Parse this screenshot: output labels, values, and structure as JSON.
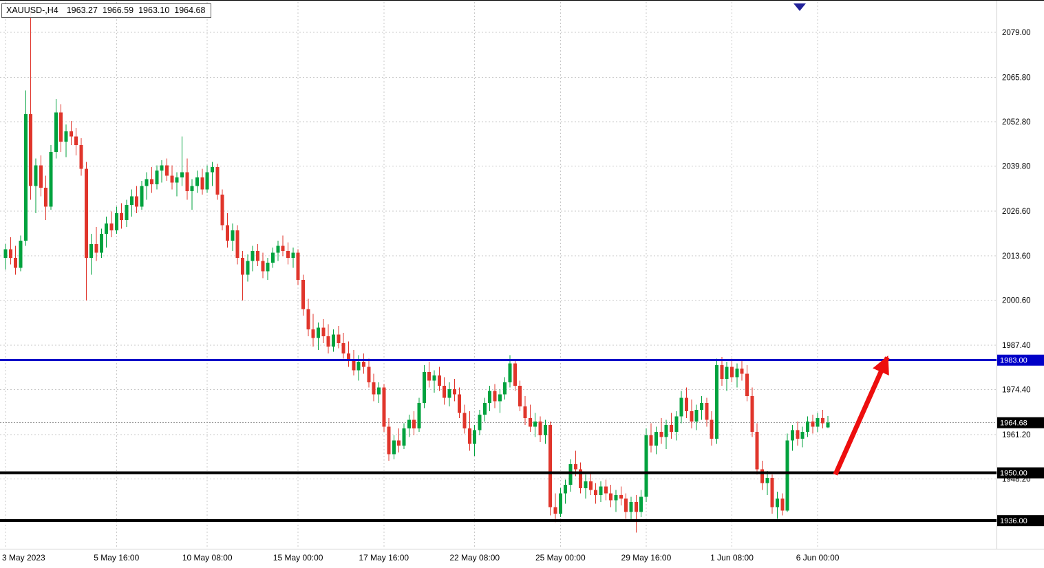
{
  "title_bar": {
    "symbol_period": "XAUUSD-,H4",
    "open": "1963.27",
    "high": "1966.59",
    "low": "1963.10",
    "close": "1964.68"
  },
  "price_axis": {
    "ticks": [
      2079.0,
      2065.8,
      2052.8,
      2039.8,
      2026.6,
      2013.6,
      2000.6,
      1987.4,
      1974.4,
      1961.2,
      1948.2
    ],
    "tags": [
      {
        "price": 1983.0,
        "label": "1983.00",
        "bg": "#0000c8"
      },
      {
        "price": 1964.68,
        "label": "1964.68",
        "bg": "#000000"
      },
      {
        "price": 1950.0,
        "label": "1950.00",
        "bg": "#000000"
      },
      {
        "price": 1936.0,
        "label": "1936.00",
        "bg": "#000000"
      }
    ]
  },
  "time_axis": {
    "labels": [
      {
        "index": 0,
        "label": "3 May 2023"
      },
      {
        "index": 22,
        "label": "5 May 16:00"
      },
      {
        "index": 40,
        "label": "10 May 08:00"
      },
      {
        "index": 58,
        "label": "15 May 00:00"
      },
      {
        "index": 75,
        "label": "17 May 16:00"
      },
      {
        "index": 93,
        "label": "22 May 08:00"
      },
      {
        "index": 110,
        "label": "25 May 00:00"
      },
      {
        "index": 127,
        "label": "29 May 16:00"
      },
      {
        "index": 144,
        "label": "1 Jun 08:00"
      },
      {
        "index": 161,
        "label": "6 Jun 00:00"
      }
    ]
  },
  "chart_data": {
    "type": "candlestick",
    "symbol": "XAUUSD-",
    "timeframe": "H4",
    "title": "XAUUSD-,H4 1963.27 1966.59 1963.10 1964.68",
    "y_axis_range": [
      1928,
      2088
    ],
    "grid": true,
    "current_price": 1964.68,
    "colors": {
      "up": "#00a23e",
      "down": "#e0352b",
      "grid": "#c8c8c8",
      "current_price_line": "#9a9a9a",
      "axis_text": "#000000",
      "tag_text": "#ffffff",
      "shift_marker": "#22229a"
    },
    "levels": [
      {
        "price": 1983.0,
        "color": "#0000c8",
        "width": 3
      },
      {
        "price": 1950.0,
        "color": "#000000",
        "width": 4
      },
      {
        "price": 1936.0,
        "color": "#000000",
        "width": 4
      }
    ],
    "annotations": [
      {
        "type": "arrow",
        "color": "#ed0e0e",
        "width": 7,
        "from": {
          "index": 164.5,
          "price": 1949.5
        },
        "to": {
          "index": 174.8,
          "price": 1983.8
        }
      }
    ],
    "ohlc": [
      [
        2013.0,
        2017.0,
        2009.5,
        2015.5
      ],
      [
        2015.5,
        2019.0,
        2011.0,
        2013.0
      ],
      [
        2013.0,
        2016.5,
        2008.0,
        2010.0
      ],
      [
        2010.0,
        2019.5,
        2009.0,
        2018.0
      ],
      [
        2018.0,
        2062.0,
        2016.5,
        2055.0
      ],
      [
        2055.0,
        2085.0,
        2030.0,
        2034.0
      ],
      [
        2034.0,
        2042.0,
        2026.0,
        2040.0
      ],
      [
        2040.0,
        2043.0,
        2031.0,
        2033.5
      ],
      [
        2033.5,
        2037.0,
        2024.0,
        2028.0
      ],
      [
        2028.0,
        2046.0,
        2027.0,
        2044.0
      ],
      [
        2044.0,
        2059.5,
        2042.0,
        2055.5
      ],
      [
        2055.5,
        2058.0,
        2044.0,
        2047.0
      ],
      [
        2047.0,
        2052.0,
        2042.5,
        2050.0
      ],
      [
        2050.0,
        2053.0,
        2046.0,
        2048.5
      ],
      [
        2048.5,
        2051.0,
        2043.0,
        2046.0
      ],
      [
        2046.0,
        2048.0,
        2037.0,
        2039.0
      ],
      [
        2039.0,
        2041.0,
        2000.5,
        2013.0
      ],
      [
        2013.0,
        2020.0,
        2008.0,
        2017.0
      ],
      [
        2017.0,
        2022.0,
        2012.0,
        2014.5
      ],
      [
        2014.5,
        2021.5,
        2013.0,
        2020.0
      ],
      [
        2020.0,
        2025.0,
        2016.0,
        2023.0
      ],
      [
        2023.0,
        2026.5,
        2019.0,
        2021.0
      ],
      [
        2021.0,
        2028.0,
        2020.0,
        2026.0
      ],
      [
        2026.0,
        2029.0,
        2021.5,
        2024.0
      ],
      [
        2024.0,
        2030.0,
        2022.0,
        2028.5
      ],
      [
        2028.5,
        2033.0,
        2025.0,
        2031.0
      ],
      [
        2031.0,
        2034.0,
        2026.0,
        2028.0
      ],
      [
        2028.0,
        2035.5,
        2027.0,
        2034.0
      ],
      [
        2034.0,
        2038.0,
        2030.0,
        2036.0
      ],
      [
        2036.0,
        2039.5,
        2032.0,
        2034.5
      ],
      [
        2034.5,
        2040.0,
        2033.0,
        2038.5
      ],
      [
        2038.5,
        2041.5,
        2035.0,
        2040.0
      ],
      [
        2040.0,
        2042.0,
        2035.5,
        2037.0
      ],
      [
        2037.0,
        2040.0,
        2033.0,
        2035.0
      ],
      [
        2035.0,
        2038.0,
        2031.0,
        2036.5
      ],
      [
        2036.5,
        2048.5,
        2034.0,
        2038.0
      ],
      [
        2038.0,
        2042.0,
        2030.0,
        2032.5
      ],
      [
        2032.5,
        2036.0,
        2027.0,
        2034.0
      ],
      [
        2034.0,
        2038.5,
        2032.0,
        2036.5
      ],
      [
        2036.5,
        2039.0,
        2031.5,
        2033.0
      ],
      [
        2033.0,
        2040.0,
        2032.0,
        2038.0
      ],
      [
        2038.0,
        2041.0,
        2034.0,
        2039.5
      ],
      [
        2039.5,
        2040.5,
        2030.0,
        2031.5
      ],
      [
        2031.5,
        2033.0,
        2021.0,
        2022.5
      ],
      [
        2022.5,
        2026.0,
        2016.0,
        2018.0
      ],
      [
        2018.0,
        2023.0,
        2015.0,
        2021.0
      ],
      [
        2021.0,
        2022.5,
        2011.0,
        2013.0
      ],
      [
        2013.0,
        2015.0,
        2000.5,
        2008.0
      ],
      [
        2008.0,
        2014.0,
        2006.0,
        2012.0
      ],
      [
        2012.0,
        2016.5,
        2009.0,
        2015.0
      ],
      [
        2015.0,
        2017.0,
        2010.5,
        2012.0
      ],
      [
        2012.0,
        2014.5,
        2007.0,
        2009.0
      ],
      [
        2009.0,
        2013.0,
        2006.5,
        2011.5
      ],
      [
        2011.5,
        2016.0,
        2010.0,
        2014.5
      ],
      [
        2014.5,
        2018.0,
        2012.0,
        2016.5
      ],
      [
        2016.5,
        2019.5,
        2013.5,
        2015.0
      ],
      [
        2015.0,
        2017.5,
        2011.0,
        2013.0
      ],
      [
        2013.0,
        2016.0,
        2010.0,
        2014.5
      ],
      [
        2014.5,
        2015.5,
        2005.0,
        2006.5
      ],
      [
        2006.5,
        2008.0,
        1996.0,
        1998.0
      ],
      [
        1998.0,
        2001.0,
        1990.0,
        1992.0
      ],
      [
        1992.0,
        1996.5,
        1987.0,
        1989.5
      ],
      [
        1989.5,
        1994.0,
        1986.0,
        1992.5
      ],
      [
        1992.5,
        1995.0,
        1988.0,
        1990.0
      ],
      [
        1990.0,
        1993.5,
        1985.0,
        1987.0
      ],
      [
        1987.0,
        1992.0,
        1985.5,
        1990.5
      ],
      [
        1990.5,
        1993.0,
        1986.5,
        1988.0
      ],
      [
        1988.0,
        1991.0,
        1983.5,
        1985.0
      ],
      [
        1985.0,
        1988.5,
        1981.0,
        1983.0
      ],
      [
        1983.0,
        1986.0,
        1978.5,
        1980.0
      ],
      [
        1980.0,
        1984.5,
        1977.0,
        1982.5
      ],
      [
        1982.5,
        1985.0,
        1979.0,
        1981.0
      ],
      [
        1981.0,
        1983.5,
        1975.0,
        1976.5
      ],
      [
        1976.5,
        1979.0,
        1971.0,
        1973.0
      ],
      [
        1973.0,
        1976.5,
        1970.5,
        1975.0
      ],
      [
        1975.0,
        1976.0,
        1962.0,
        1963.5
      ],
      [
        1963.5,
        1966.0,
        1953.5,
        1955.5
      ],
      [
        1955.5,
        1961.0,
        1954.0,
        1959.5
      ],
      [
        1959.5,
        1963.0,
        1956.0,
        1958.0
      ],
      [
        1958.0,
        1964.5,
        1957.0,
        1963.0
      ],
      [
        1963.0,
        1967.0,
        1960.5,
        1965.5
      ],
      [
        1965.5,
        1968.0,
        1961.0,
        1963.0
      ],
      [
        1963.0,
        1972.0,
        1962.0,
        1970.5
      ],
      [
        1970.5,
        1981.5,
        1969.0,
        1979.5
      ],
      [
        1979.5,
        1982.5,
        1975.0,
        1977.0
      ],
      [
        1977.0,
        1980.0,
        1973.5,
        1978.5
      ],
      [
        1978.5,
        1981.0,
        1974.0,
        1975.5
      ],
      [
        1975.5,
        1978.0,
        1970.0,
        1972.0
      ],
      [
        1972.0,
        1976.5,
        1969.5,
        1974.5
      ],
      [
        1974.5,
        1977.5,
        1971.0,
        1973.0
      ],
      [
        1973.0,
        1975.0,
        1966.0,
        1967.5
      ],
      [
        1967.5,
        1970.0,
        1961.5,
        1963.0
      ],
      [
        1963.0,
        1968.0,
        1956.5,
        1958.5
      ],
      [
        1958.5,
        1964.0,
        1955.0,
        1962.5
      ],
      [
        1962.5,
        1968.5,
        1961.0,
        1967.0
      ],
      [
        1967.0,
        1972.0,
        1965.0,
        1970.5
      ],
      [
        1970.5,
        1975.5,
        1968.0,
        1974.0
      ],
      [
        1974.0,
        1976.0,
        1969.0,
        1971.0
      ],
      [
        1971.0,
        1974.5,
        1967.5,
        1973.0
      ],
      [
        1973.0,
        1978.0,
        1971.5,
        1976.5
      ],
      [
        1976.5,
        1984.5,
        1975.0,
        1982.0
      ],
      [
        1982.0,
        1983.0,
        1974.0,
        1975.5
      ],
      [
        1975.5,
        1977.0,
        1968.0,
        1969.5
      ],
      [
        1969.5,
        1972.5,
        1964.0,
        1966.0
      ],
      [
        1966.0,
        1970.0,
        1962.0,
        1963.5
      ],
      [
        1963.5,
        1967.5,
        1960.5,
        1965.0
      ],
      [
        1965.0,
        1966.5,
        1959.0,
        1961.0
      ],
      [
        1961.0,
        1965.5,
        1958.5,
        1964.0
      ],
      [
        1964.0,
        1965.0,
        1937.5,
        1940.0
      ],
      [
        1940.0,
        1944.0,
        1935.5,
        1938.0
      ],
      [
        1938.0,
        1945.5,
        1937.0,
        1944.0
      ],
      [
        1944.0,
        1948.0,
        1941.0,
        1946.5
      ],
      [
        1946.5,
        1954.0,
        1944.5,
        1952.5
      ],
      [
        1952.5,
        1956.5,
        1949.0,
        1951.0
      ],
      [
        1951.0,
        1953.0,
        1944.0,
        1945.5
      ],
      [
        1945.5,
        1949.5,
        1942.5,
        1947.5
      ],
      [
        1947.5,
        1950.0,
        1943.5,
        1945.0
      ],
      [
        1945.0,
        1947.0,
        1941.0,
        1943.5
      ],
      [
        1943.5,
        1947.5,
        1941.5,
        1946.0
      ],
      [
        1946.0,
        1948.0,
        1942.0,
        1944.0
      ],
      [
        1944.0,
        1946.5,
        1940.0,
        1942.0
      ],
      [
        1942.0,
        1945.0,
        1938.5,
        1943.5
      ],
      [
        1943.5,
        1946.0,
        1940.5,
        1942.5
      ],
      [
        1942.5,
        1944.0,
        1936.5,
        1938.5
      ],
      [
        1938.5,
        1943.0,
        1936.0,
        1941.5
      ],
      [
        1941.5,
        1943.5,
        1932.5,
        1938.5
      ],
      [
        1938.5,
        1945.0,
        1937.0,
        1943.0
      ],
      [
        1943.0,
        1963.0,
        1941.5,
        1961.0
      ],
      [
        1961.0,
        1964.5,
        1956.0,
        1958.0
      ],
      [
        1958.0,
        1963.5,
        1955.5,
        1962.0
      ],
      [
        1962.0,
        1966.0,
        1958.5,
        1960.5
      ],
      [
        1960.5,
        1965.5,
        1957.0,
        1964.0
      ],
      [
        1964.0,
        1967.5,
        1960.0,
        1962.0
      ],
      [
        1962.0,
        1968.0,
        1959.5,
        1966.5
      ],
      [
        1966.5,
        1974.0,
        1964.5,
        1972.0
      ],
      [
        1972.0,
        1975.0,
        1966.0,
        1968.0
      ],
      [
        1968.0,
        1971.5,
        1963.0,
        1965.0
      ],
      [
        1965.0,
        1970.0,
        1962.5,
        1968.5
      ],
      [
        1968.5,
        1972.5,
        1965.5,
        1970.5
      ],
      [
        1970.5,
        1972.0,
        1963.5,
        1965.5
      ],
      [
        1965.5,
        1968.0,
        1958.0,
        1960.0
      ],
      [
        1960.0,
        1983.5,
        1958.5,
        1981.5
      ],
      [
        1981.5,
        1984.0,
        1975.5,
        1977.5
      ],
      [
        1977.5,
        1982.5,
        1974.0,
        1981.0
      ],
      [
        1981.0,
        1983.5,
        1976.5,
        1978.0
      ],
      [
        1978.0,
        1982.0,
        1975.0,
        1980.5
      ],
      [
        1980.5,
        1983.0,
        1977.0,
        1979.0
      ],
      [
        1979.0,
        1981.5,
        1971.0,
        1972.5
      ],
      [
        1972.5,
        1975.0,
        1960.5,
        1962.0
      ],
      [
        1962.0,
        1964.5,
        1949.5,
        1951.0
      ],
      [
        1951.0,
        1953.5,
        1945.0,
        1947.0
      ],
      [
        1947.0,
        1950.5,
        1943.5,
        1948.5
      ],
      [
        1948.5,
        1949.5,
        1938.0,
        1940.0
      ],
      [
        1940.0,
        1944.5,
        1936.5,
        1942.5
      ],
      [
        1942.5,
        1944.0,
        1937.5,
        1939.0
      ],
      [
        1939.0,
        1961.5,
        1938.5,
        1959.5
      ],
      [
        1959.5,
        1964.0,
        1956.5,
        1962.5
      ],
      [
        1962.5,
        1965.0,
        1958.0,
        1960.0
      ],
      [
        1960.0,
        1963.5,
        1957.5,
        1962.0
      ],
      [
        1962.0,
        1966.5,
        1960.5,
        1965.0
      ],
      [
        1965.0,
        1967.0,
        1961.5,
        1963.5
      ],
      [
        1963.5,
        1967.5,
        1962.0,
        1966.0
      ],
      [
        1966.0,
        1968.5,
        1963.0,
        1964.5
      ],
      [
        1963.27,
        1966.59,
        1963.1,
        1964.68
      ]
    ]
  }
}
